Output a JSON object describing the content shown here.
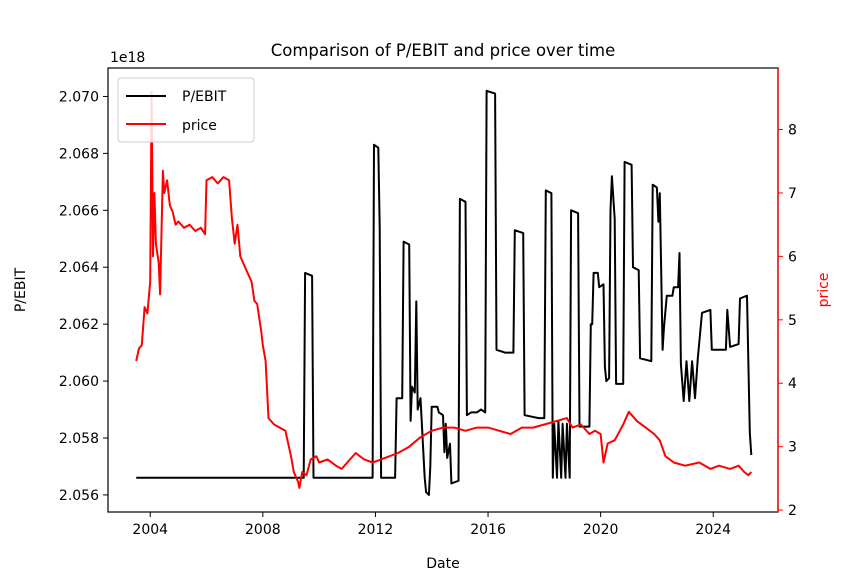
{
  "chart_data": {
    "type": "line",
    "title": "Comparison of P/EBIT and price over time",
    "xlabel": "Date",
    "ylabel_left": "P/EBIT",
    "ylabel_right": "price",
    "left_offset_text": "1e18",
    "x_ticks": [
      "2004",
      "2008",
      "2012",
      "2016",
      "2020",
      "2024"
    ],
    "left_ticks": [
      "2.056",
      "2.058",
      "2.060",
      "2.062",
      "2.064",
      "2.066",
      "2.068",
      "2.070"
    ],
    "right_ticks": [
      "2",
      "3",
      "4",
      "5",
      "6",
      "7",
      "8"
    ],
    "xlim": [
      2002.5,
      2026.3
    ],
    "ylim_left": [
      2.0554,
      2.071
    ],
    "ylim_right": [
      1.97,
      8.97
    ],
    "legend_position": "upper-left",
    "grid": false,
    "colors": {
      "pebit": "#000000",
      "price": "#ff0000"
    },
    "series": [
      {
        "name": "P/EBIT",
        "axis": "left",
        "color": "#000000",
        "points": [
          [
            2003.5,
            2.0566
          ],
          [
            2009.45,
            2.0566
          ],
          [
            2009.5,
            2.0638
          ],
          [
            2009.75,
            2.0637
          ],
          [
            2009.8,
            2.0566
          ],
          [
            2011.9,
            2.0566
          ],
          [
            2011.95,
            2.0683
          ],
          [
            2012.1,
            2.0682
          ],
          [
            2012.15,
            2.0654
          ],
          [
            2012.2,
            2.0566
          ],
          [
            2012.7,
            2.0566
          ],
          [
            2012.75,
            2.0594
          ],
          [
            2012.95,
            2.0594
          ],
          [
            2013.0,
            2.0649
          ],
          [
            2013.2,
            2.0648
          ],
          [
            2013.25,
            2.0586
          ],
          [
            2013.3,
            2.0598
          ],
          [
            2013.4,
            2.0596
          ],
          [
            2013.45,
            2.0628
          ],
          [
            2013.5,
            2.059
          ],
          [
            2013.6,
            2.0594
          ],
          [
            2013.75,
            2.0566
          ],
          [
            2013.8,
            2.0561
          ],
          [
            2013.9,
            2.056
          ],
          [
            2013.95,
            2.057
          ],
          [
            2014.0,
            2.0591
          ],
          [
            2014.2,
            2.0591
          ],
          [
            2014.25,
            2.0589
          ],
          [
            2014.4,
            2.0588
          ],
          [
            2014.45,
            2.0575
          ],
          [
            2014.5,
            2.0585
          ],
          [
            2014.55,
            2.0573
          ],
          [
            2014.65,
            2.0578
          ],
          [
            2014.7,
            2.0564
          ],
          [
            2014.95,
            2.0565
          ],
          [
            2015.0,
            2.0664
          ],
          [
            2015.2,
            2.0663
          ],
          [
            2015.25,
            2.0588
          ],
          [
            2015.4,
            2.0589
          ],
          [
            2015.6,
            2.0589
          ],
          [
            2015.75,
            2.059
          ],
          [
            2015.9,
            2.0589
          ],
          [
            2015.95,
            2.0702
          ],
          [
            2016.25,
            2.0701
          ],
          [
            2016.3,
            2.0611
          ],
          [
            2016.6,
            2.061
          ],
          [
            2016.9,
            2.061
          ],
          [
            2016.95,
            2.0653
          ],
          [
            2017.25,
            2.0652
          ],
          [
            2017.3,
            2.0588
          ],
          [
            2017.8,
            2.0587
          ],
          [
            2018.0,
            2.0587
          ],
          [
            2018.05,
            2.0667
          ],
          [
            2018.25,
            2.0666
          ],
          [
            2018.3,
            2.0566
          ],
          [
            2018.35,
            2.0585
          ],
          [
            2018.45,
            2.0566
          ],
          [
            2018.5,
            2.0586
          ],
          [
            2018.6,
            2.0566
          ],
          [
            2018.65,
            2.0585
          ],
          [
            2018.75,
            2.0566
          ],
          [
            2018.8,
            2.0585
          ],
          [
            2018.9,
            2.0566
          ],
          [
            2018.95,
            2.066
          ],
          [
            2019.2,
            2.0659
          ],
          [
            2019.25,
            2.0584
          ],
          [
            2019.6,
            2.0584
          ],
          [
            2019.65,
            2.062
          ],
          [
            2019.7,
            2.062
          ],
          [
            2019.75,
            2.0638
          ],
          [
            2019.9,
            2.0638
          ],
          [
            2019.95,
            2.0633
          ],
          [
            2020.1,
            2.0634
          ],
          [
            2020.15,
            2.0605
          ],
          [
            2020.2,
            2.06
          ],
          [
            2020.3,
            2.0601
          ],
          [
            2020.35,
            2.066
          ],
          [
            2020.4,
            2.0672
          ],
          [
            2020.5,
            2.0657
          ],
          [
            2020.55,
            2.0599
          ],
          [
            2020.8,
            2.0599
          ],
          [
            2020.85,
            2.0677
          ],
          [
            2021.1,
            2.0676
          ],
          [
            2021.15,
            2.064
          ],
          [
            2021.35,
            2.0639
          ],
          [
            2021.4,
            2.0608
          ],
          [
            2021.8,
            2.0607
          ],
          [
            2021.85,
            2.0669
          ],
          [
            2022.0,
            2.0668
          ],
          [
            2022.05,
            2.0656
          ],
          [
            2022.1,
            2.0666
          ],
          [
            2022.2,
            2.0611
          ],
          [
            2022.25,
            2.0619
          ],
          [
            2022.35,
            2.063
          ],
          [
            2022.55,
            2.063
          ],
          [
            2022.6,
            2.0633
          ],
          [
            2022.75,
            2.0633
          ],
          [
            2022.8,
            2.0645
          ],
          [
            2022.85,
            2.0606
          ],
          [
            2022.95,
            2.0593
          ],
          [
            2023.05,
            2.0607
          ],
          [
            2023.15,
            2.0593
          ],
          [
            2023.25,
            2.0607
          ],
          [
            2023.35,
            2.0594
          ],
          [
            2023.45,
            2.0608
          ],
          [
            2023.6,
            2.0624
          ],
          [
            2023.9,
            2.0625
          ],
          [
            2023.95,
            2.0611
          ],
          [
            2024.45,
            2.0611
          ],
          [
            2024.5,
            2.0625
          ],
          [
            2024.6,
            2.0612
          ],
          [
            2024.9,
            2.0613
          ],
          [
            2024.95,
            2.0629
          ],
          [
            2025.2,
            2.063
          ],
          [
            2025.3,
            2.0582
          ],
          [
            2025.35,
            2.0574
          ]
        ]
      },
      {
        "name": "price",
        "axis": "right",
        "color": "#ff0000",
        "points": [
          [
            2003.5,
            4.35
          ],
          [
            2003.6,
            4.55
          ],
          [
            2003.7,
            4.6
          ],
          [
            2003.8,
            5.2
          ],
          [
            2003.9,
            5.1
          ],
          [
            2004.0,
            5.6
          ],
          [
            2004.05,
            8.6
          ],
          [
            2004.1,
            6.0
          ],
          [
            2004.15,
            7.0
          ],
          [
            2004.2,
            6.2
          ],
          [
            2004.3,
            5.9
          ],
          [
            2004.35,
            5.4
          ],
          [
            2004.45,
            7.35
          ],
          [
            2004.5,
            7.0
          ],
          [
            2004.6,
            7.2
          ],
          [
            2004.7,
            6.8
          ],
          [
            2004.8,
            6.7
          ],
          [
            2004.9,
            6.5
          ],
          [
            2005.0,
            6.55
          ],
          [
            2005.2,
            6.45
          ],
          [
            2005.4,
            6.5
          ],
          [
            2005.6,
            6.4
          ],
          [
            2005.8,
            6.45
          ],
          [
            2005.95,
            6.35
          ],
          [
            2006.0,
            7.2
          ],
          [
            2006.2,
            7.25
          ],
          [
            2006.4,
            7.15
          ],
          [
            2006.6,
            7.25
          ],
          [
            2006.8,
            7.2
          ],
          [
            2006.9,
            6.6
          ],
          [
            2007.0,
            6.2
          ],
          [
            2007.1,
            6.5
          ],
          [
            2007.2,
            6.0
          ],
          [
            2007.4,
            5.8
          ],
          [
            2007.6,
            5.6
          ],
          [
            2007.7,
            5.3
          ],
          [
            2007.8,
            5.25
          ],
          [
            2007.95,
            4.8
          ],
          [
            2008.0,
            4.6
          ],
          [
            2008.1,
            4.35
          ],
          [
            2008.2,
            3.45
          ],
          [
            2008.4,
            3.35
          ],
          [
            2008.6,
            3.3
          ],
          [
            2008.8,
            3.25
          ],
          [
            2009.0,
            2.85
          ],
          [
            2009.1,
            2.6
          ],
          [
            2009.25,
            2.45
          ],
          [
            2009.3,
            2.35
          ],
          [
            2009.4,
            2.6
          ],
          [
            2009.55,
            2.55
          ],
          [
            2009.7,
            2.8
          ],
          [
            2009.9,
            2.85
          ],
          [
            2010.0,
            2.75
          ],
          [
            2010.3,
            2.8
          ],
          [
            2010.6,
            2.7
          ],
          [
            2010.8,
            2.65
          ],
          [
            2011.0,
            2.75
          ],
          [
            2011.3,
            2.9
          ],
          [
            2011.6,
            2.8
          ],
          [
            2011.9,
            2.75
          ],
          [
            2012.2,
            2.8
          ],
          [
            2012.5,
            2.85
          ],
          [
            2012.8,
            2.9
          ],
          [
            2013.2,
            3.0
          ],
          [
            2013.6,
            3.15
          ],
          [
            2014.0,
            3.25
          ],
          [
            2014.4,
            3.3
          ],
          [
            2014.8,
            3.3
          ],
          [
            2015.2,
            3.25
          ],
          [
            2015.6,
            3.3
          ],
          [
            2016.0,
            3.3
          ],
          [
            2016.4,
            3.25
          ],
          [
            2016.8,
            3.2
          ],
          [
            2017.2,
            3.3
          ],
          [
            2017.6,
            3.3
          ],
          [
            2018.0,
            3.35
          ],
          [
            2018.4,
            3.4
          ],
          [
            2018.8,
            3.45
          ],
          [
            2019.0,
            3.3
          ],
          [
            2019.3,
            3.35
          ],
          [
            2019.6,
            3.2
          ],
          [
            2019.8,
            3.25
          ],
          [
            2020.0,
            3.2
          ],
          [
            2020.1,
            2.75
          ],
          [
            2020.25,
            3.05
          ],
          [
            2020.5,
            3.1
          ],
          [
            2020.8,
            3.35
          ],
          [
            2021.0,
            3.55
          ],
          [
            2021.3,
            3.4
          ],
          [
            2021.6,
            3.3
          ],
          [
            2021.9,
            3.2
          ],
          [
            2022.1,
            3.1
          ],
          [
            2022.3,
            2.85
          ],
          [
            2022.6,
            2.75
          ],
          [
            2023.0,
            2.7
          ],
          [
            2023.5,
            2.75
          ],
          [
            2023.9,
            2.65
          ],
          [
            2024.2,
            2.7
          ],
          [
            2024.6,
            2.65
          ],
          [
            2024.9,
            2.7
          ],
          [
            2025.1,
            2.6
          ],
          [
            2025.25,
            2.55
          ],
          [
            2025.35,
            2.6
          ]
        ]
      }
    ]
  }
}
